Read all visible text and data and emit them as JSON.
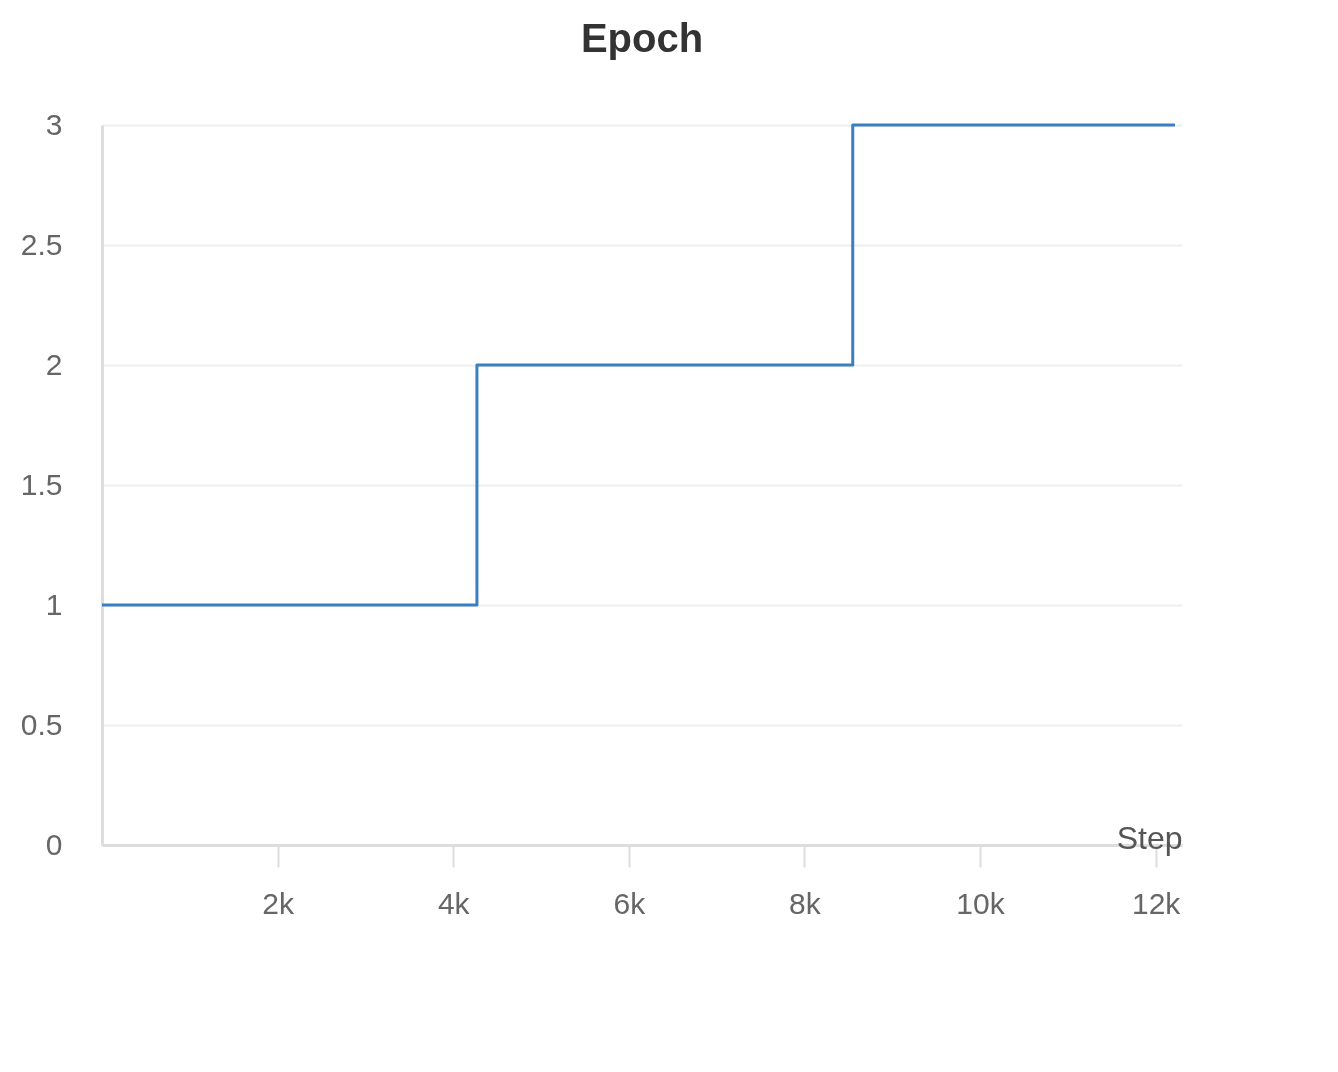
{
  "chart_data": {
    "type": "step",
    "title": "Epoch",
    "xlabel": "Step",
    "x": [
      0,
      4270,
      8550,
      12220
    ],
    "series": [
      {
        "color": "#3a7fc1",
        "values": [
          1,
          2,
          3,
          3
        ]
      }
    ],
    "xlim": [
      0,
      12300
    ],
    "xticks": [
      {
        "value": 2000,
        "label": "2k"
      },
      {
        "value": 4000,
        "label": "4k"
      },
      {
        "value": 6000,
        "label": "6k"
      },
      {
        "value": 8000,
        "label": "8k"
      },
      {
        "value": 10000,
        "label": "10k"
      },
      {
        "value": 12000,
        "label": "12k"
      }
    ],
    "ylim": [
      0,
      3
    ],
    "yticks": [
      0,
      0.5,
      1,
      1.5,
      2,
      2.5,
      3
    ],
    "grid": "y"
  }
}
